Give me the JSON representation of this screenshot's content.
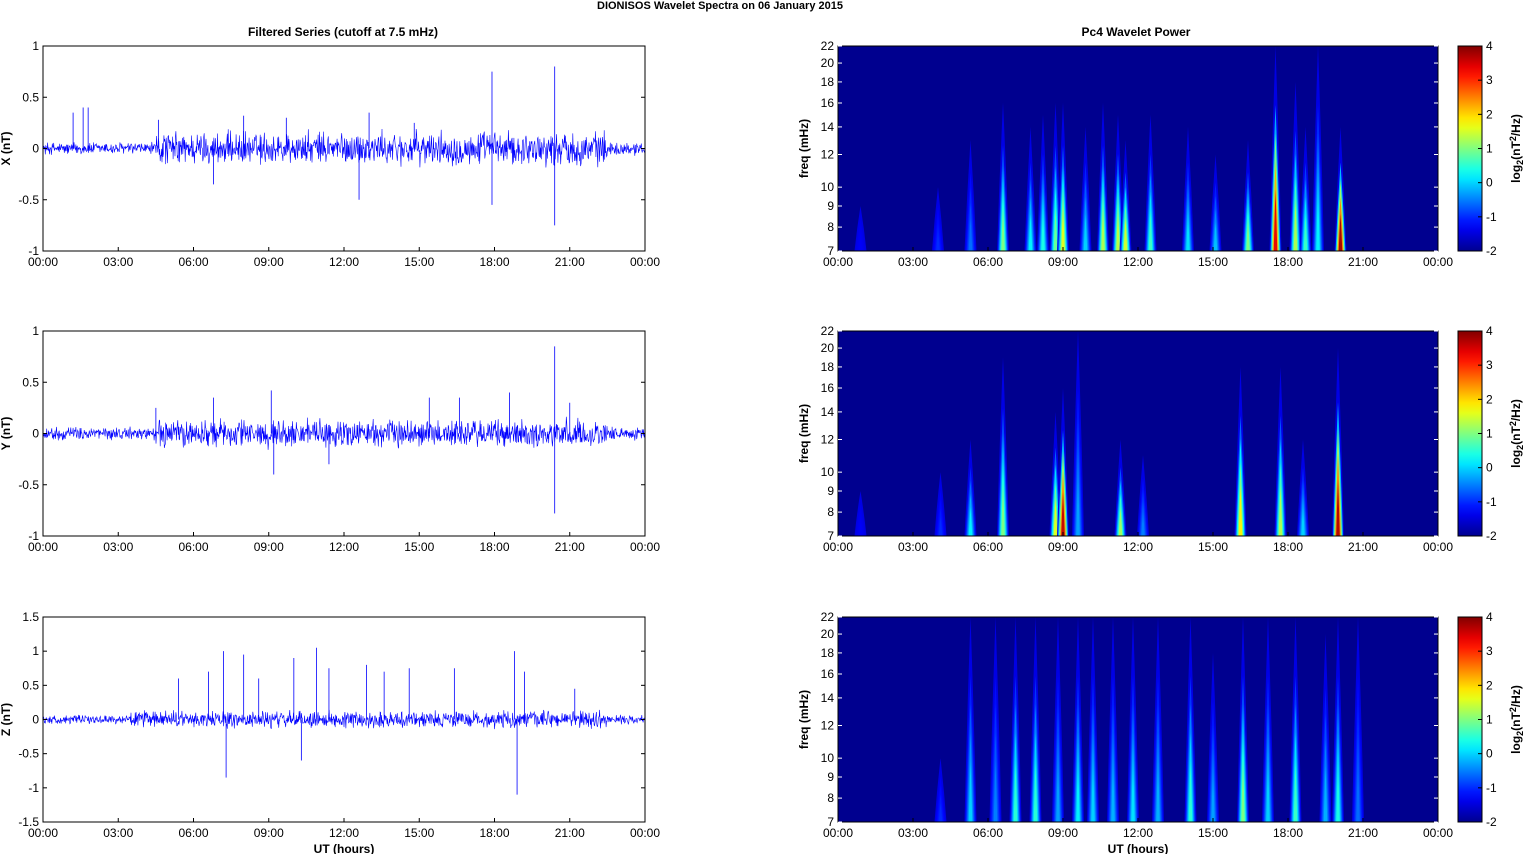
{
  "figure_title": "DIONISOS Wavelet Spectra on 06 January   2015",
  "left_column_title": "Filtered Series (cutoff at 7.5 mHz)",
  "right_column_title": "Pc4 Wavelet Power",
  "colors": {
    "trace": "#0000ff",
    "spectrum_background": "#00008f",
    "colormap": [
      "#00008f",
      "#0000ff",
      "#00ffff",
      "#ffff00",
      "#ff0000",
      "#800000"
    ]
  },
  "chart_data": [
    {
      "type": "line",
      "title": "Filtered Series (cutoff at 7.5 mHz)",
      "series": [
        {
          "name": "X",
          "color": "#0000ff"
        }
      ],
      "xlabel": "",
      "ylabel": "X (nT)",
      "x_range": [
        "00:00",
        "24:00"
      ],
      "x_tick_labels": [
        "00:00",
        "03:00",
        "06:00",
        "09:00",
        "12:00",
        "15:00",
        "18:00",
        "21:00",
        "00:00"
      ],
      "ylim": [
        -1,
        1
      ],
      "y_ticks": [
        -1,
        -0.5,
        0,
        0.5,
        1
      ],
      "y_tick_labels": [
        "-1",
        "-0.5",
        "0",
        "0.5",
        "1"
      ],
      "noise": {
        "active_start_hour": 4.5,
        "active_end_hour": 22.5,
        "quiet_amplitude": 0.05,
        "active_amplitude": 0.13
      },
      "spikes": [
        {
          "hour": 1.2,
          "value": 0.35
        },
        {
          "hour": 1.6,
          "value": 0.4
        },
        {
          "hour": 1.8,
          "value": 0.4
        },
        {
          "hour": 4.6,
          "value": 0.28
        },
        {
          "hour": 6.8,
          "value": -0.35
        },
        {
          "hour": 8.0,
          "value": 0.32
        },
        {
          "hour": 9.7,
          "value": 0.3
        },
        {
          "hour": 12.6,
          "value": -0.5
        },
        {
          "hour": 13.0,
          "value": 0.35
        },
        {
          "hour": 14.8,
          "value": 0.25
        },
        {
          "hour": 17.9,
          "value": 0.75
        },
        {
          "hour": 17.9,
          "value": -0.55
        },
        {
          "hour": 20.4,
          "value": 0.8
        },
        {
          "hour": 20.4,
          "value": -0.75
        }
      ],
      "grid": false
    },
    {
      "type": "line",
      "series": [
        {
          "name": "Y",
          "color": "#0000ff"
        }
      ],
      "xlabel": "",
      "ylabel": "Y (nT)",
      "x_range": [
        "00:00",
        "24:00"
      ],
      "x_tick_labels": [
        "00:00",
        "03:00",
        "06:00",
        "09:00",
        "12:00",
        "15:00",
        "18:00",
        "21:00",
        "00:00"
      ],
      "ylim": [
        -1,
        1
      ],
      "y_ticks": [
        -1,
        -0.5,
        0,
        0.5,
        1
      ],
      "y_tick_labels": [
        "-1",
        "-0.5",
        "0",
        "0.5",
        "1"
      ],
      "noise": {
        "active_start_hour": 4.5,
        "active_end_hour": 22.5,
        "quiet_amplitude": 0.05,
        "active_amplitude": 0.11
      },
      "spikes": [
        {
          "hour": 4.5,
          "value": 0.25
        },
        {
          "hour": 6.8,
          "value": 0.35
        },
        {
          "hour": 9.1,
          "value": 0.42
        },
        {
          "hour": 9.2,
          "value": -0.4
        },
        {
          "hour": 11.4,
          "value": -0.3
        },
        {
          "hour": 15.4,
          "value": 0.35
        },
        {
          "hour": 16.6,
          "value": 0.35
        },
        {
          "hour": 18.6,
          "value": 0.4
        },
        {
          "hour": 20.4,
          "value": 0.85
        },
        {
          "hour": 20.4,
          "value": -0.78
        },
        {
          "hour": 21.0,
          "value": 0.3
        }
      ],
      "grid": false
    },
    {
      "type": "line",
      "series": [
        {
          "name": "Z",
          "color": "#0000ff"
        }
      ],
      "xlabel": "UT (hours)",
      "ylabel": "Z (nT)",
      "x_range": [
        "00:00",
        "24:00"
      ],
      "x_tick_labels": [
        "00:00",
        "03:00",
        "06:00",
        "09:00",
        "12:00",
        "15:00",
        "18:00",
        "21:00",
        "00:00"
      ],
      "ylim": [
        -1.5,
        1.5
      ],
      "y_ticks": [
        -1.5,
        -1,
        -0.5,
        0,
        0.5,
        1,
        1.5
      ],
      "y_tick_labels": [
        "-1.5",
        "-1",
        "-0.5",
        "0",
        "0.5",
        "1",
        "1.5"
      ],
      "noise": {
        "active_start_hour": 3.5,
        "active_end_hour": 22.5,
        "quiet_amplitude": 0.05,
        "active_amplitude": 0.1
      },
      "spikes": [
        {
          "hour": 5.4,
          "value": 0.6
        },
        {
          "hour": 6.6,
          "value": 0.7
        },
        {
          "hour": 7.2,
          "value": 1.0
        },
        {
          "hour": 7.3,
          "value": -0.85
        },
        {
          "hour": 8.0,
          "value": 0.95
        },
        {
          "hour": 8.6,
          "value": 0.6
        },
        {
          "hour": 10.0,
          "value": 0.9
        },
        {
          "hour": 10.3,
          "value": -0.6
        },
        {
          "hour": 10.9,
          "value": 1.05
        },
        {
          "hour": 11.4,
          "value": 0.75
        },
        {
          "hour": 12.9,
          "value": 0.8
        },
        {
          "hour": 13.6,
          "value": 0.7
        },
        {
          "hour": 14.6,
          "value": 0.75
        },
        {
          "hour": 16.4,
          "value": 0.75
        },
        {
          "hour": 18.8,
          "value": 1.0
        },
        {
          "hour": 18.9,
          "value": -1.1
        },
        {
          "hour": 19.2,
          "value": 0.7
        },
        {
          "hour": 21.2,
          "value": 0.45
        }
      ],
      "grid": false
    },
    {
      "type": "heatmap",
      "title": "Pc4 Wavelet Power",
      "xlabel": "",
      "ylabel": "freq (mHz)",
      "x_range": [
        "00:00",
        "24:00"
      ],
      "x_tick_labels": [
        "00:00",
        "03:00",
        "06:00",
        "09:00",
        "12:00",
        "15:00",
        "18:00",
        "21:00",
        "00:00"
      ],
      "ylim": [
        7,
        22
      ],
      "y_scale": "log",
      "y_ticks": [
        7,
        8,
        9,
        10,
        12,
        14,
        16,
        18,
        20,
        22
      ],
      "y_tick_labels": [
        "7",
        "8",
        "9",
        "10",
        "12",
        "14",
        "16",
        "18",
        "20",
        "22"
      ],
      "colorbar": {
        "label": "log2(nT^2/Hz)",
        "range": [
          -2,
          4
        ],
        "tick_labels": [
          "-2",
          "-1",
          "0",
          "1",
          "2",
          "3",
          "4"
        ]
      },
      "bursts": [
        {
          "hour": 0.9,
          "top_freq": 9,
          "peak": -1.3
        },
        {
          "hour": 4.0,
          "top_freq": 10,
          "peak": -1.0
        },
        {
          "hour": 5.3,
          "top_freq": 13,
          "peak": -0.6
        },
        {
          "hour": 6.6,
          "top_freq": 16,
          "peak": 1.0
        },
        {
          "hour": 7.7,
          "top_freq": 14,
          "peak": 0.2
        },
        {
          "hour": 8.2,
          "top_freq": 15,
          "peak": 0.4
        },
        {
          "hour": 8.7,
          "top_freq": 16,
          "peak": 0.9
        },
        {
          "hour": 9.0,
          "top_freq": 16,
          "peak": 1.6
        },
        {
          "hour": 9.9,
          "top_freq": 14,
          "peak": 0.0
        },
        {
          "hour": 10.6,
          "top_freq": 16,
          "peak": 1.3
        },
        {
          "hour": 11.2,
          "top_freq": 15,
          "peak": 1.4
        },
        {
          "hour": 11.5,
          "top_freq": 13,
          "peak": 1.5
        },
        {
          "hour": 12.5,
          "top_freq": 15,
          "peak": 0.6
        },
        {
          "hour": 14.0,
          "top_freq": 14,
          "peak": 0.1
        },
        {
          "hour": 15.1,
          "top_freq": 12,
          "peak": -0.1
        },
        {
          "hour": 16.4,
          "top_freq": 13,
          "peak": 1.0
        },
        {
          "hour": 17.5,
          "top_freq": 22,
          "peak": 3.4
        },
        {
          "hour": 18.3,
          "top_freq": 18,
          "peak": 1.3
        },
        {
          "hour": 18.7,
          "top_freq": 14,
          "peak": 0.6
        },
        {
          "hour": 19.2,
          "top_freq": 22,
          "peak": 0.2
        },
        {
          "hour": 20.1,
          "top_freq": 14,
          "peak": 3.8
        }
      ]
    },
    {
      "type": "heatmap",
      "xlabel": "",
      "ylabel": "freq (mHz)",
      "x_range": [
        "00:00",
        "24:00"
      ],
      "x_tick_labels": [
        "00:00",
        "03:00",
        "06:00",
        "09:00",
        "12:00",
        "15:00",
        "18:00",
        "21:00",
        "00:00"
      ],
      "ylim": [
        7,
        22
      ],
      "y_scale": "log",
      "y_ticks": [
        7,
        8,
        9,
        10,
        12,
        14,
        16,
        18,
        20,
        22
      ],
      "y_tick_labels": [
        "7",
        "8",
        "9",
        "10",
        "12",
        "14",
        "16",
        "18",
        "20",
        "22"
      ],
      "colorbar": {
        "label": "log2(nT^2/Hz)",
        "range": [
          -2,
          4
        ],
        "tick_labels": [
          "-2",
          "-1",
          "0",
          "1",
          "2",
          "3",
          "4"
        ]
      },
      "bursts": [
        {
          "hour": 0.9,
          "top_freq": 9,
          "peak": -1.3
        },
        {
          "hour": 4.1,
          "top_freq": 10,
          "peak": -1.0
        },
        {
          "hour": 5.3,
          "top_freq": 12,
          "peak": 0.2
        },
        {
          "hour": 6.6,
          "top_freq": 19,
          "peak": 1.0
        },
        {
          "hour": 8.7,
          "top_freq": 14,
          "peak": 1.6
        },
        {
          "hour": 9.0,
          "top_freq": 16,
          "peak": 3.6
        },
        {
          "hour": 9.6,
          "top_freq": 22,
          "peak": -0.3
        },
        {
          "hour": 11.3,
          "top_freq": 12,
          "peak": 1.2
        },
        {
          "hour": 12.2,
          "top_freq": 11,
          "peak": -0.5
        },
        {
          "hour": 16.1,
          "top_freq": 18,
          "peak": 1.8
        },
        {
          "hour": 17.7,
          "top_freq": 18,
          "peak": 1.3
        },
        {
          "hour": 18.6,
          "top_freq": 12,
          "peak": 0.0
        },
        {
          "hour": 20.0,
          "top_freq": 20,
          "peak": 3.7
        }
      ]
    },
    {
      "type": "heatmap",
      "xlabel": "UT (hours)",
      "ylabel": "freq (mHz)",
      "x_range": [
        "00:00",
        "24:00"
      ],
      "x_tick_labels": [
        "00:00",
        "03:00",
        "06:00",
        "09:00",
        "12:00",
        "15:00",
        "18:00",
        "21:00",
        "00:00"
      ],
      "ylim": [
        7,
        22
      ],
      "y_scale": "log",
      "y_ticks": [
        7,
        8,
        9,
        10,
        12,
        14,
        16,
        18,
        20,
        22
      ],
      "y_tick_labels": [
        "7",
        "8",
        "9",
        "10",
        "12",
        "14",
        "16",
        "18",
        "20",
        "22"
      ],
      "colorbar": {
        "label": "log2(nT^2/Hz)",
        "range": [
          -2,
          4
        ],
        "tick_labels": [
          "-2",
          "-1",
          "0",
          "1",
          "2",
          "3",
          "4"
        ]
      },
      "bursts": [
        {
          "hour": 4.1,
          "top_freq": 10,
          "peak": -1.0
        },
        {
          "hour": 5.3,
          "top_freq": 22,
          "peak": 0.0
        },
        {
          "hour": 6.3,
          "top_freq": 22,
          "peak": -0.5
        },
        {
          "hour": 7.1,
          "top_freq": 22,
          "peak": 0.5
        },
        {
          "hour": 7.9,
          "top_freq": 22,
          "peak": 0.5
        },
        {
          "hour": 8.8,
          "top_freq": 22,
          "peak": -0.3
        },
        {
          "hour": 9.6,
          "top_freq": 22,
          "peak": 0.2
        },
        {
          "hour": 10.2,
          "top_freq": 22,
          "peak": 0.0
        },
        {
          "hour": 11.0,
          "top_freq": 22,
          "peak": -0.2
        },
        {
          "hour": 11.8,
          "top_freq": 22,
          "peak": 0.1
        },
        {
          "hour": 12.8,
          "top_freq": 22,
          "peak": -0.2
        },
        {
          "hour": 14.1,
          "top_freq": 22,
          "peak": 0.5
        },
        {
          "hour": 15.0,
          "top_freq": 18,
          "peak": -0.3
        },
        {
          "hour": 16.2,
          "top_freq": 22,
          "peak": 1.0
        },
        {
          "hour": 17.2,
          "top_freq": 22,
          "peak": 0.0
        },
        {
          "hour": 18.3,
          "top_freq": 22,
          "peak": 0.6
        },
        {
          "hour": 19.5,
          "top_freq": 20,
          "peak": -0.2
        },
        {
          "hour": 20.0,
          "top_freq": 22,
          "peak": 0.4
        },
        {
          "hour": 20.8,
          "top_freq": 22,
          "peak": -0.6
        }
      ]
    }
  ]
}
